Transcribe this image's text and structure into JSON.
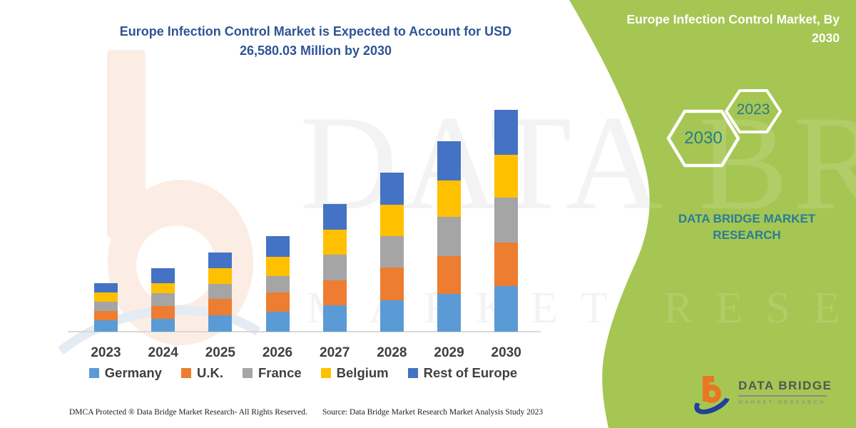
{
  "title": {
    "text": "Europe Infection Control Market is Expected to Account for USD 26,580.03 Million by 2030",
    "color": "#2F5496"
  },
  "right_panel": {
    "bg_color": "#A5C653",
    "title": "Europe Infection Control Market, By 2030",
    "hexagons": [
      {
        "label": "2030",
        "size": "large"
      },
      {
        "label": "2023",
        "size": "small"
      }
    ],
    "brand_text": "DATA BRIDGE MARKET RESEARCH",
    "text_color": "#2B7C95"
  },
  "watermark": {
    "line1": "DATA BRIDGE",
    "line2": "MARKET RESEARCH"
  },
  "chart_data": {
    "type": "bar",
    "stacked": true,
    "title": "Europe Infection Control Market is Expected to Account for USD 26,580.03 Million by 2030",
    "unit": "USD Million",
    "categories": [
      "2023",
      "2024",
      "2025",
      "2026",
      "2027",
      "2028",
      "2029",
      "2030"
    ],
    "series": [
      {
        "name": "Germany",
        "color": "#5B9BD5",
        "values": [
          1370,
          1510,
          1940,
          2370,
          3135,
          3785,
          4555,
          5495
        ]
      },
      {
        "name": "U.K.",
        "color": "#ED7D31",
        "values": [
          1140,
          1565,
          1990,
          2335,
          2990,
          3905,
          4480,
          5190
        ]
      },
      {
        "name": "France",
        "color": "#A5A5A5",
        "values": [
          1060,
          1565,
          1770,
          1990,
          3075,
          3785,
          4725,
          5360
        ]
      },
      {
        "name": "Belgium",
        "color": "#FFC000",
        "values": [
          1160,
          1195,
          1905,
          2310,
          3045,
          3710,
          4335,
          5175
        ]
      },
      {
        "name": "Rest of Europe",
        "color": "#4472C4",
        "values": [
          1060,
          1745,
          1880,
          2480,
          3025,
          3845,
          4750,
          5360
        ]
      }
    ],
    "totals": [
      5790,
      7580,
      9485,
      11485,
      15270,
      19030,
      22845,
      26580
    ],
    "highlight": {
      "year": "2030",
      "total_usd_million": 26580.03
    },
    "y_axis_visible": false,
    "gridlines": false,
    "legend_position": "bottom"
  },
  "logo": {
    "name": "DATA BRIDGE",
    "sub": "MARKET RESEARCH"
  },
  "footer": {
    "left": "DMCA Protected ® Data Bridge Market Research-  All Rights Reserved.",
    "right": "Source: Data Bridge Market Research  Market Analysis Study 2023"
  }
}
